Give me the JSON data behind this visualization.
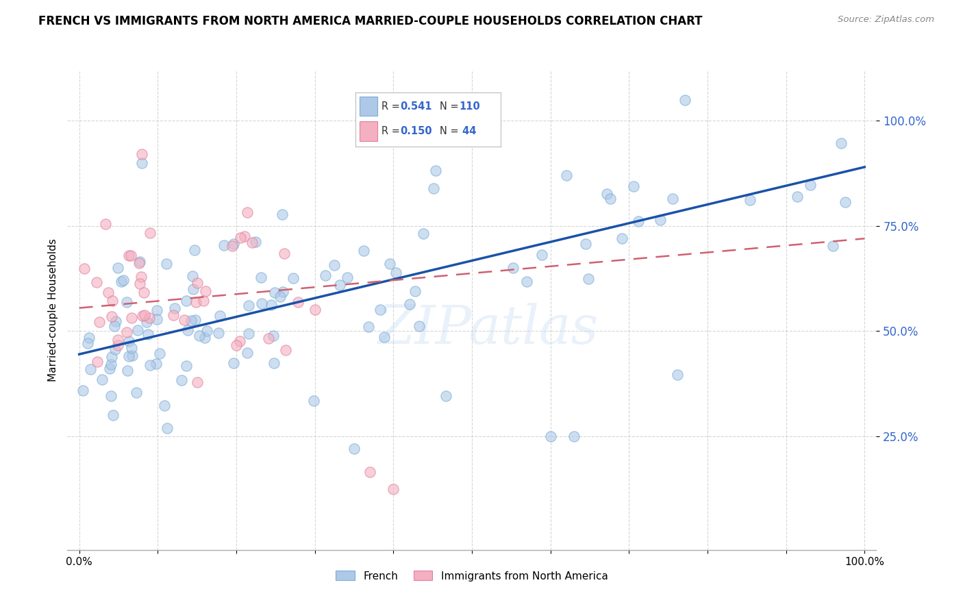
{
  "title": "FRENCH VS IMMIGRANTS FROM NORTH AMERICA MARRIED-COUPLE HOUSEHOLDS CORRELATION CHART",
  "source": "Source: ZipAtlas.com",
  "ylabel": "Married-couple Households",
  "watermark": "ZIPatlas",
  "legend_R1": "R = 0.541",
  "legend_N1": "N = 110",
  "legend_R2": "R = 0.150",
  "legend_N2": "N =  44",
  "legend_label1": "French",
  "legend_label2": "Immigrants from North America",
  "blue_color": "#aec8e8",
  "pink_color": "#f4afc0",
  "blue_line_color": "#1a52a8",
  "pink_line_color": "#d06070",
  "ytick_color": "#3366cc",
  "ytick_labels": [
    "100.0%",
    "75.0%",
    "50.0%",
    "25.0%"
  ],
  "ytick_values": [
    1.0,
    0.75,
    0.5,
    0.25
  ],
  "background_color": "#ffffff",
  "grid_color": "#cccccc",
  "title_fontsize": 12,
  "axis_label_fontsize": 11,
  "tick_fontsize": 11,
  "blue_intercept": 0.445,
  "blue_slope": 0.445,
  "pink_intercept": 0.555,
  "pink_slope": 0.165
}
